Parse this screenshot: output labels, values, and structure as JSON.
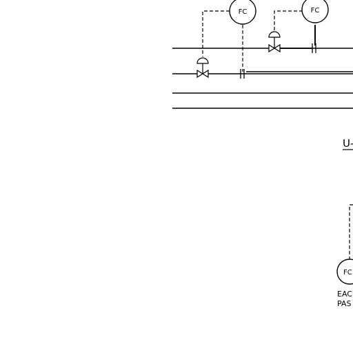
{
  "diagram": {
    "colors": {
      "background": "#ffffff",
      "line": "#000000"
    },
    "instruments": [
      {
        "id": "fc-left",
        "tag": "FC"
      },
      {
        "id": "fc-right",
        "tag": "FC"
      },
      {
        "id": "fc-bottom",
        "tag": "FC"
      }
    ],
    "labels": {
      "unit_title": "U-",
      "note_line_1": "EAC",
      "note_line_2": "PAS"
    }
  }
}
